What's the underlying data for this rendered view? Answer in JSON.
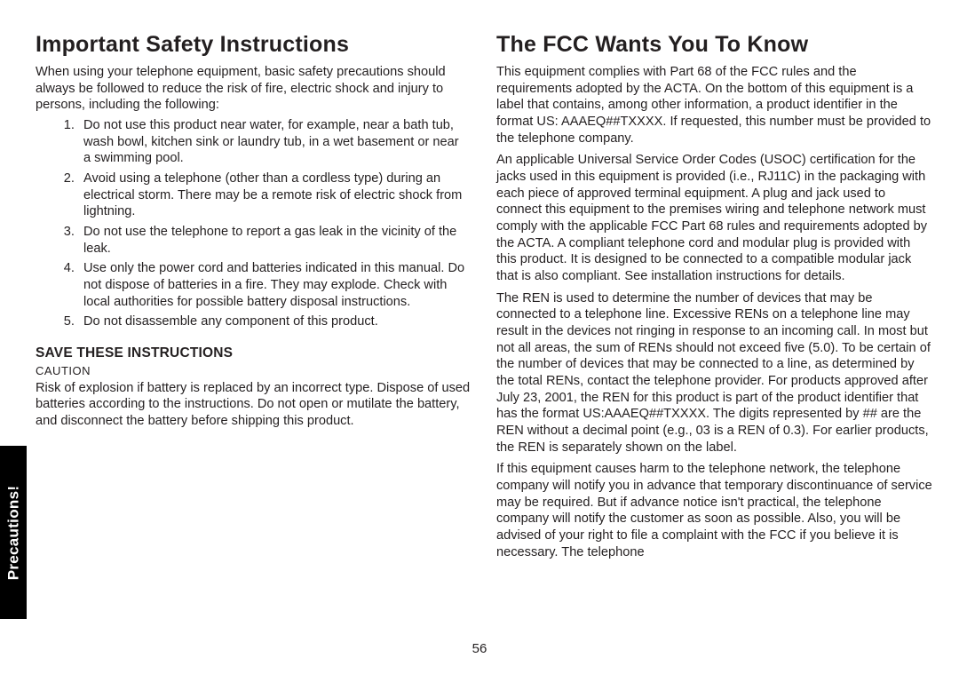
{
  "sideTab": {
    "label": "Precautions!",
    "bg": "#000000",
    "fg": "#ffffff"
  },
  "pageNumber": "56",
  "left": {
    "heading": "Important Safety Instructions",
    "intro": "When using your telephone equipment, basic safety precautions should always be followed to reduce the risk of fire, electric shock and injury to persons, including the following:",
    "items": [
      "Do not use this product near water, for example, near a bath tub, wash bowl, kitchen sink or laundry tub, in a wet basement or near a swimming pool.",
      "Avoid using a telephone (other than a cordless type) during an electrical storm. There may be a remote risk of electric shock from lightning.",
      "Do not use the telephone to report a gas leak in the vicinity of the leak.",
      "Use only the power cord and batteries indicated in this manual. Do not dispose of batteries in a fire. They may explode. Check with local authorities for possible battery disposal instructions.",
      "Do not disassemble any component of this product."
    ],
    "saveHeading": "SAVE THESE INSTRUCTIONS",
    "cautionLabel": "CAUTION",
    "cautionBody": "Risk of explosion if battery is replaced by an incorrect type. Dispose of used batteries according to the instructions. Do not open or mutilate the battery, and disconnect the battery before shipping this product."
  },
  "right": {
    "heading": "The FCC Wants You To Know",
    "paras": [
      "This equipment complies with Part 68 of the FCC rules and the requirements adopted by the ACTA. On the bottom of this equipment is a label that contains, among other information, a product identifier in the format US: AAAEQ##TXXXX. If requested, this number must be provided to the telephone company.",
      "An applicable Universal Service Order Codes (USOC) certification for the jacks used in this equipment is provided (i.e., RJ11C) in the packaging with each piece of approved terminal equipment. A plug and jack used to connect this equipment to the premises wiring and telephone network must comply with the applicable FCC Part 68 rules and requirements adopted by the ACTA. A compliant telephone cord and modular plug is provided with this product. It is designed to be connected to a compatible modular jack that is also compliant. See installation instructions for details.",
      "The REN is used to determine the number of devices that may be connected to a telephone line. Excessive RENs on a telephone line may result in the devices not ringing in response to an incoming call. In most but not all areas, the sum of RENs should not exceed five (5.0). To be certain of the number of devices that may be connected to a line, as determined by the total RENs, contact the telephone provider. For products approved after July 23, 2001, the REN for this product is part of the product identifier that has the format US:AAAEQ##TXXXX. The digits represented by ## are the REN without a decimal point (e.g., 03 is a REN of 0.3). For earlier products, the REN is separately shown on the label.",
      "If this equipment causes harm to the telephone network, the telephone company will notify you in advance that temporary discontinuance of service may be required. But if advance notice isn't practical, the telephone company will notify the customer as soon as possible. Also, you will be advised of your right to file a complaint with the FCC if you believe it is necessary. The telephone"
    ]
  }
}
